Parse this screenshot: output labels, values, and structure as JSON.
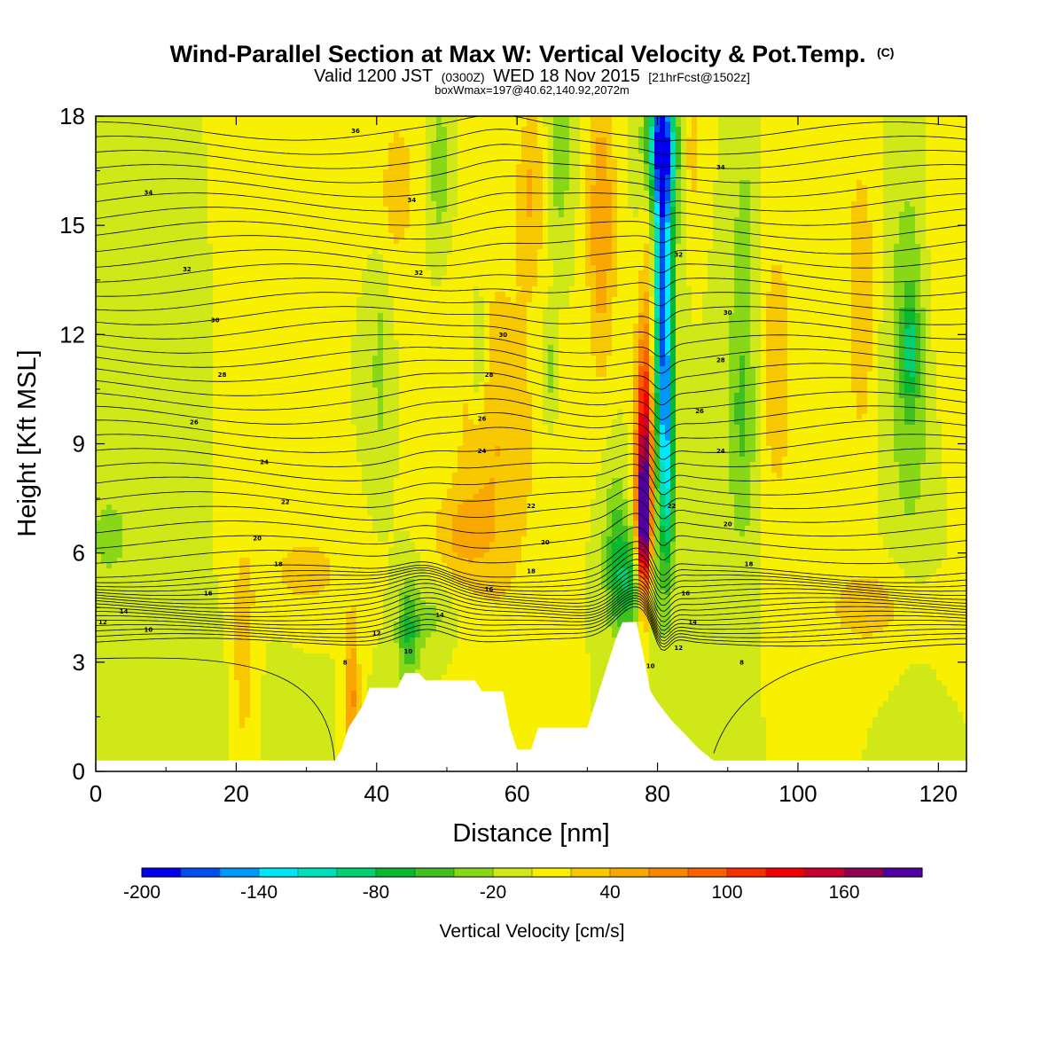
{
  "title": {
    "main": "Wind-Parallel Section at Max W: Vertical Velocity & Pot.Temp.",
    "copyright": "(C)",
    "valid_a": "Valid 1200 JST",
    "valid_b": "(0300Z)",
    "valid_c": "WED 18 Nov 2015",
    "valid_d": "[21hrFcst@1502z]",
    "box": "boxWmax=197@40.62,140.92,2072m"
  },
  "chart_data": {
    "type": "heatmap",
    "xlabel": "Distance [nm]",
    "ylabel": "Height [Kft MSL]",
    "xlim": [
      0,
      124
    ],
    "ylim": [
      0,
      18
    ],
    "xticks": [
      "0",
      "20",
      "40",
      "60",
      "80",
      "100",
      "120"
    ],
    "yticks": [
      "0",
      "3",
      "6",
      "9",
      "12",
      "15",
      "18"
    ],
    "colorbar": {
      "label": "Vertical Velocity [cm/s]",
      "min": -200,
      "max": 200,
      "step": 20,
      "tick_labels": [
        "-200",
        "-140",
        "-80",
        "-20",
        "40",
        "100",
        "160"
      ],
      "colors": [
        "#0000ee",
        "#0050f0",
        "#0098f8",
        "#00e8f8",
        "#00e0b8",
        "#00d070",
        "#08b830",
        "#40c020",
        "#88d818",
        "#d0e818",
        "#f8f000",
        "#f8c800",
        "#f8a800",
        "#f88800",
        "#f86000",
        "#f83000",
        "#f00000",
        "#c80030",
        "#900050",
        "#5000a0"
      ]
    },
    "terrain_nm_kft": [
      [
        0,
        0.3
      ],
      [
        34,
        0.3
      ],
      [
        35,
        0.6
      ],
      [
        36,
        1.2
      ],
      [
        38,
        1.8
      ],
      [
        39,
        2.3
      ],
      [
        43,
        2.3
      ],
      [
        44,
        2.7
      ],
      [
        46,
        2.7
      ],
      [
        47,
        2.5
      ],
      [
        54,
        2.5
      ],
      [
        55,
        2.2
      ],
      [
        58,
        2.2
      ],
      [
        59,
        1.2
      ],
      [
        60,
        0.6
      ],
      [
        62,
        0.6
      ],
      [
        63,
        1.2
      ],
      [
        70,
        1.2
      ],
      [
        71,
        1.8
      ],
      [
        72,
        2.4
      ],
      [
        73,
        3.0
      ],
      [
        74,
        3.6
      ],
      [
        75,
        4.1
      ],
      [
        77,
        4.1
      ],
      [
        78,
        3.2
      ],
      [
        79,
        2.2
      ],
      [
        80,
        1.9
      ],
      [
        82,
        1.4
      ],
      [
        84,
        1.0
      ],
      [
        86,
        0.6
      ],
      [
        88,
        0.3
      ],
      [
        124,
        0.3
      ]
    ],
    "w_features": [
      {
        "x": 80.5,
        "z": 13,
        "rx": 1.6,
        "rz": 6,
        "w": -190
      },
      {
        "x": 80.5,
        "z": 17.2,
        "rx": 2.2,
        "rz": 1.8,
        "w": -130
      },
      {
        "x": 81.5,
        "z": 8.2,
        "rx": 0.9,
        "rz": 3,
        "w": -60
      },
      {
        "x": 78.3,
        "z": 9,
        "rx": 1.4,
        "rz": 3.2,
        "w": 150
      },
      {
        "x": 78,
        "z": 6.5,
        "rx": 1.0,
        "rz": 2,
        "w": 160
      },
      {
        "x": 79.3,
        "z": 14,
        "rx": 1.3,
        "rz": 4,
        "w": 80
      },
      {
        "x": 76,
        "z": 5.2,
        "rx": 2.5,
        "rz": 1.5,
        "w": -70
      },
      {
        "x": 74,
        "z": 6.3,
        "rx": 1.8,
        "rz": 2.2,
        "w": -40
      },
      {
        "x": 44.5,
        "z": 3.8,
        "rx": 1.6,
        "rz": 1.4,
        "w": -60
      },
      {
        "x": 48,
        "z": 4.2,
        "rx": 3,
        "rz": 1.0,
        "w": -25
      },
      {
        "x": 54.5,
        "z": 11.5,
        "rx": 1.2,
        "rz": 1.8,
        "w": -45
      },
      {
        "x": 57,
        "z": 9,
        "rx": 6,
        "rz": 5,
        "w": 40
      },
      {
        "x": 52,
        "z": 6.5,
        "rx": 4,
        "rz": 1.2,
        "w": 35
      },
      {
        "x": 36.5,
        "z": 2,
        "rx": 1.0,
        "rz": 2.2,
        "w": 65
      },
      {
        "x": 92,
        "z": 10,
        "rx": 2.2,
        "rz": 4,
        "w": -45
      },
      {
        "x": 92.5,
        "z": 15,
        "rx": 1.5,
        "rz": 2,
        "w": -25
      },
      {
        "x": 97,
        "z": 11,
        "rx": 2.5,
        "rz": 4,
        "w": 35
      },
      {
        "x": 116,
        "z": 11.5,
        "rx": 3,
        "rz": 5,
        "w": -45
      },
      {
        "x": 116,
        "z": 11.6,
        "rx": 1.0,
        "rz": 1.2,
        "w": -60
      },
      {
        "x": 109,
        "z": 13,
        "rx": 2,
        "rz": 4,
        "w": 40
      },
      {
        "x": 110,
        "z": 4.5,
        "rx": 7,
        "rz": 1.2,
        "w": 30
      },
      {
        "x": 120,
        "z": 14,
        "rx": 3,
        "rz": 4,
        "w": 20
      },
      {
        "x": 2,
        "z": 6.5,
        "rx": 6,
        "rz": 2.5,
        "w": -22
      },
      {
        "x": 8,
        "z": 2,
        "rx": 14,
        "rz": 2,
        "w": -18
      },
      {
        "x": 21,
        "z": 3,
        "rx": 2,
        "rz": 3.5,
        "w": 35
      },
      {
        "x": 30,
        "z": 5.5,
        "rx": 6,
        "rz": 1.2,
        "w": 28
      },
      {
        "x": 40.5,
        "z": 11,
        "rx": 1.2,
        "rz": 2.5,
        "w": -30
      },
      {
        "x": 49,
        "z": 16.5,
        "rx": 1.5,
        "rz": 2,
        "w": -35
      },
      {
        "x": 43,
        "z": 16,
        "rx": 2.5,
        "rz": 2,
        "w": 35
      },
      {
        "x": 66,
        "z": 17,
        "rx": 1.8,
        "rz": 2.5,
        "w": -35
      },
      {
        "x": 64.5,
        "z": 11,
        "rx": 1.0,
        "rz": 1.5,
        "w": -35
      },
      {
        "x": 72,
        "z": 15,
        "rx": 2,
        "rz": 4,
        "w": 60
      },
      {
        "x": 85,
        "z": 17,
        "rx": 1.5,
        "rz": 1.8,
        "w": 30
      },
      {
        "x": 62,
        "z": 16,
        "rx": 2,
        "rz": 2.5,
        "w": 40
      }
    ],
    "theta_contours": {
      "labels": [
        {
          "x": 37,
          "z": 17.6,
          "text": "36"
        },
        {
          "x": 7.5,
          "z": 15.9,
          "text": "34"
        },
        {
          "x": 45,
          "z": 15.7,
          "text": "34"
        },
        {
          "x": 89,
          "z": 16.6,
          "text": "34"
        },
        {
          "x": 13,
          "z": 13.8,
          "text": "32"
        },
        {
          "x": 46,
          "z": 13.7,
          "text": "32"
        },
        {
          "x": 83,
          "z": 14.2,
          "text": "32"
        },
        {
          "x": 17,
          "z": 12.4,
          "text": "30"
        },
        {
          "x": 58,
          "z": 12.0,
          "text": "30"
        },
        {
          "x": 90,
          "z": 12.6,
          "text": "30"
        },
        {
          "x": 18,
          "z": 10.9,
          "text": "28"
        },
        {
          "x": 56,
          "z": 10.9,
          "text": "28"
        },
        {
          "x": 89,
          "z": 11.3,
          "text": "28"
        },
        {
          "x": 14,
          "z": 9.6,
          "text": "26"
        },
        {
          "x": 55,
          "z": 9.7,
          "text": "26"
        },
        {
          "x": 86,
          "z": 9.9,
          "text": "26"
        },
        {
          "x": 24,
          "z": 8.5,
          "text": "24"
        },
        {
          "x": 55,
          "z": 8.8,
          "text": "24"
        },
        {
          "x": 89,
          "z": 8.8,
          "text": "24"
        },
        {
          "x": 27,
          "z": 7.4,
          "text": "22"
        },
        {
          "x": 62,
          "z": 7.3,
          "text": "22"
        },
        {
          "x": 82,
          "z": 7.3,
          "text": "22"
        },
        {
          "x": 23,
          "z": 6.4,
          "text": "20"
        },
        {
          "x": 64,
          "z": 6.3,
          "text": "20"
        },
        {
          "x": 90,
          "z": 6.8,
          "text": "20"
        },
        {
          "x": 26,
          "z": 5.7,
          "text": "18"
        },
        {
          "x": 62,
          "z": 5.5,
          "text": "18"
        },
        {
          "x": 93,
          "z": 5.7,
          "text": "18"
        },
        {
          "x": 16,
          "z": 4.9,
          "text": "16"
        },
        {
          "x": 56,
          "z": 5.0,
          "text": "16"
        },
        {
          "x": 84,
          "z": 4.9,
          "text": "16"
        },
        {
          "x": 4,
          "z": 4.4,
          "text": "14"
        },
        {
          "x": 49,
          "z": 4.3,
          "text": "14"
        },
        {
          "x": 85,
          "z": 4.1,
          "text": "14"
        },
        {
          "x": 1,
          "z": 4.1,
          "text": "12"
        },
        {
          "x": 40,
          "z": 3.8,
          "text": "12"
        },
        {
          "x": 83,
          "z": 3.4,
          "text": "12"
        },
        {
          "x": 7.5,
          "z": 3.9,
          "text": "10"
        },
        {
          "x": 44.5,
          "z": 3.3,
          "text": "10"
        },
        {
          "x": 79,
          "z": 2.9,
          "text": "10"
        },
        {
          "x": 35.5,
          "z": 3.0,
          "text": "8"
        },
        {
          "x": 92,
          "z": 3.0,
          "text": "8"
        }
      ]
    }
  }
}
